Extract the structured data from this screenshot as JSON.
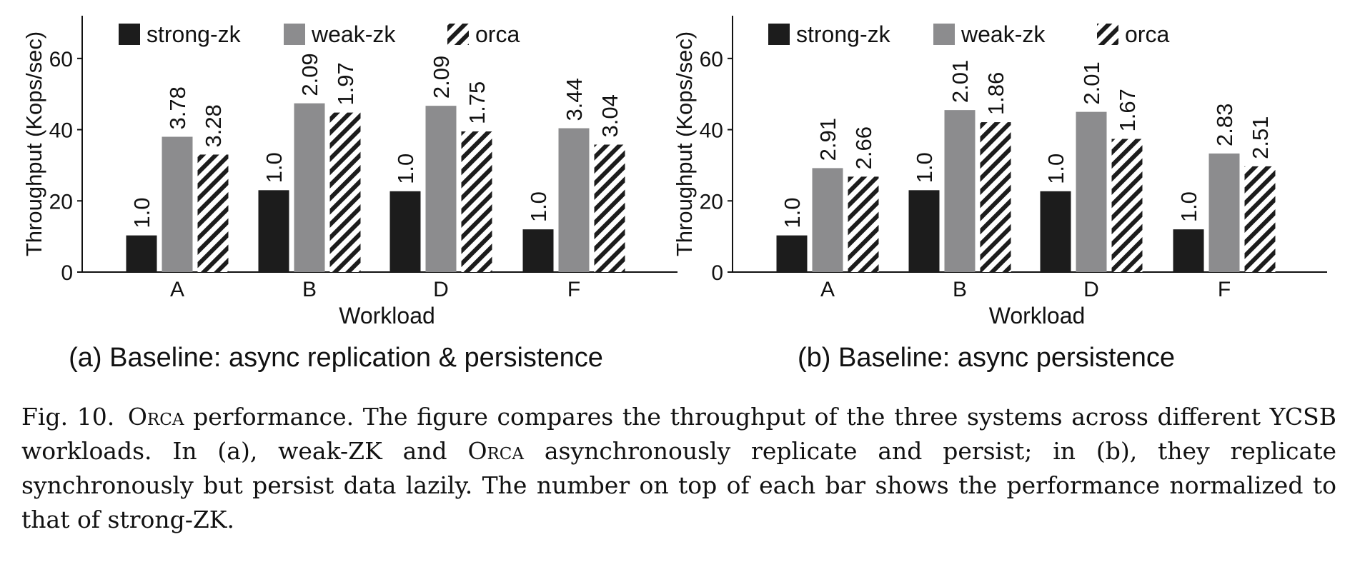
{
  "chart_data": [
    {
      "type": "bar",
      "subcaption": "(a) Baseline: async replication & persistence",
      "xlabel": "Workload",
      "ylabel": "Throughput (Kops/sec)",
      "categories": [
        "A",
        "B",
        "D",
        "F"
      ],
      "ylim": [
        0,
        72
      ],
      "yticks": [
        0,
        20,
        40,
        60
      ],
      "legend_position": "top",
      "series": [
        {
          "name": "strong-zk",
          "style": "solid-black",
          "color": "#1c1c1c",
          "values": [
            10.3,
            23.0,
            22.7,
            12.0
          ],
          "labels": [
            "1.0",
            "1.0",
            "1.0",
            "1.0"
          ]
        },
        {
          "name": "weak-zk",
          "style": "solid-gray",
          "color": "#8c8c8e",
          "values": [
            38.0,
            47.4,
            46.7,
            40.4
          ],
          "labels": [
            "3.78",
            "2.09",
            "2.09",
            "3.44"
          ]
        },
        {
          "name": "orca",
          "style": "hatched",
          "color": "#1c1c1c",
          "values": [
            33.0,
            44.8,
            39.5,
            35.8
          ],
          "labels": [
            "3.28",
            "1.97",
            "1.75",
            "3.04"
          ]
        }
      ]
    },
    {
      "type": "bar",
      "subcaption": "(b) Baseline: async persistence",
      "xlabel": "Workload",
      "ylabel": "Throughput (Kops/sec)",
      "categories": [
        "A",
        "B",
        "D",
        "F"
      ],
      "ylim": [
        0,
        72
      ],
      "yticks": [
        0,
        20,
        40,
        60
      ],
      "legend_position": "top",
      "series": [
        {
          "name": "strong-zk",
          "style": "solid-black",
          "color": "#1c1c1c",
          "values": [
            10.3,
            23.0,
            22.7,
            12.0
          ],
          "labels": [
            "1.0",
            "1.0",
            "1.0",
            "1.0"
          ]
        },
        {
          "name": "weak-zk",
          "style": "solid-gray",
          "color": "#8c8c8e",
          "values": [
            29.2,
            45.5,
            45.0,
            33.3
          ],
          "labels": [
            "2.91",
            "2.01",
            "2.01",
            "2.83"
          ]
        },
        {
          "name": "orca",
          "style": "hatched",
          "color": "#1c1c1c",
          "values": [
            26.8,
            42.1,
            37.4,
            29.7
          ],
          "labels": [
            "2.66",
            "1.86",
            "1.67",
            "2.51"
          ]
        }
      ]
    }
  ],
  "caption": {
    "label": "Fig. 10.",
    "system_name": "Orca",
    "text_1": " performance. The figure compares the throughput of the three systems across different YCSB workloads. In (a), weak-ZK and ",
    "system_name_2": "Orca",
    "text_2": " asynchronously replicate and persist; in (b), they replicate synchronously but persist data lazily. The number on top of each bar shows the performance normalized to that of strong-ZK."
  }
}
